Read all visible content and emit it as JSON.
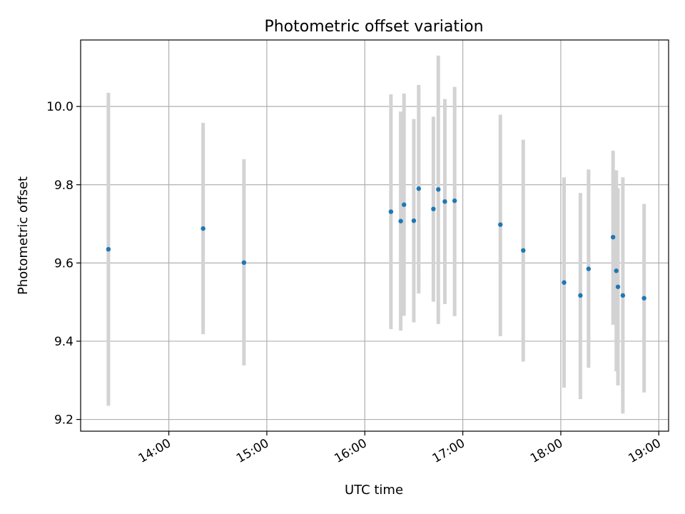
{
  "chart_data": {
    "type": "scatter",
    "title": "Photometric offset variation",
    "xlabel": "UTC time",
    "ylabel": "Photometric offset",
    "grid": true,
    "colors": {
      "points": "#1f77b4",
      "errorbars": "#d3d3d3",
      "grid": "#b0b0b0"
    },
    "xlim": [
      "13:06",
      "19:06"
    ],
    "ylim": [
      9.17,
      10.17
    ],
    "x_ticks": [
      "14:00",
      "15:00",
      "16:00",
      "17:00",
      "18:00",
      "19:00"
    ],
    "y_ticks": [
      "9.2",
      "9.4",
      "9.6",
      "9.8",
      "10.0"
    ],
    "points": [
      {
        "x": "13:23",
        "y": 9.635,
        "yerr_low": 9.235,
        "yerr_high": 10.035
      },
      {
        "x": "14:21",
        "y": 9.688,
        "yerr_low": 9.418,
        "yerr_high": 9.958
      },
      {
        "x": "14:46",
        "y": 9.601,
        "yerr_low": 9.338,
        "yerr_high": 9.865
      },
      {
        "x": "16:16",
        "y": 9.731,
        "yerr_low": 9.431,
        "yerr_high": 10.031
      },
      {
        "x": "16:22",
        "y": 9.707,
        "yerr_low": 9.427,
        "yerr_high": 9.987
      },
      {
        "x": "16:24",
        "y": 9.749,
        "yerr_low": 9.465,
        "yerr_high": 10.033
      },
      {
        "x": "16:30",
        "y": 9.708,
        "yerr_low": 9.448,
        "yerr_high": 9.968
      },
      {
        "x": "16:33",
        "y": 9.79,
        "yerr_low": 9.522,
        "yerr_high": 10.055
      },
      {
        "x": "16:42",
        "y": 9.738,
        "yerr_low": 9.501,
        "yerr_high": 9.974
      },
      {
        "x": "16:45",
        "y": 9.788,
        "yerr_low": 9.444,
        "yerr_high": 10.13
      },
      {
        "x": "16:49",
        "y": 9.757,
        "yerr_low": 9.495,
        "yerr_high": 10.019
      },
      {
        "x": "16:55",
        "y": 9.759,
        "yerr_low": 9.464,
        "yerr_high": 10.05
      },
      {
        "x": "17:23",
        "y": 9.698,
        "yerr_low": 9.413,
        "yerr_high": 9.979
      },
      {
        "x": "17:37",
        "y": 9.632,
        "yerr_low": 9.348,
        "yerr_high": 9.915
      },
      {
        "x": "18:02",
        "y": 9.55,
        "yerr_low": 9.281,
        "yerr_high": 9.819
      },
      {
        "x": "18:12",
        "y": 9.517,
        "yerr_low": 9.252,
        "yerr_high": 9.779
      },
      {
        "x": "18:17",
        "y": 9.585,
        "yerr_low": 9.332,
        "yerr_high": 9.839
      },
      {
        "x": "18:32",
        "y": 9.666,
        "yerr_low": 9.442,
        "yerr_high": 9.887
      },
      {
        "x": "18:34",
        "y": 9.58,
        "yerr_low": 9.323,
        "yerr_high": 9.837
      },
      {
        "x": "18:35",
        "y": 9.539,
        "yerr_low": 9.287,
        "yerr_high": 9.791
      },
      {
        "x": "18:38",
        "y": 9.517,
        "yerr_low": 9.215,
        "yerr_high": 9.819
      },
      {
        "x": "18:51",
        "y": 9.51,
        "yerr_low": 9.269,
        "yerr_high": 9.751
      }
    ]
  }
}
